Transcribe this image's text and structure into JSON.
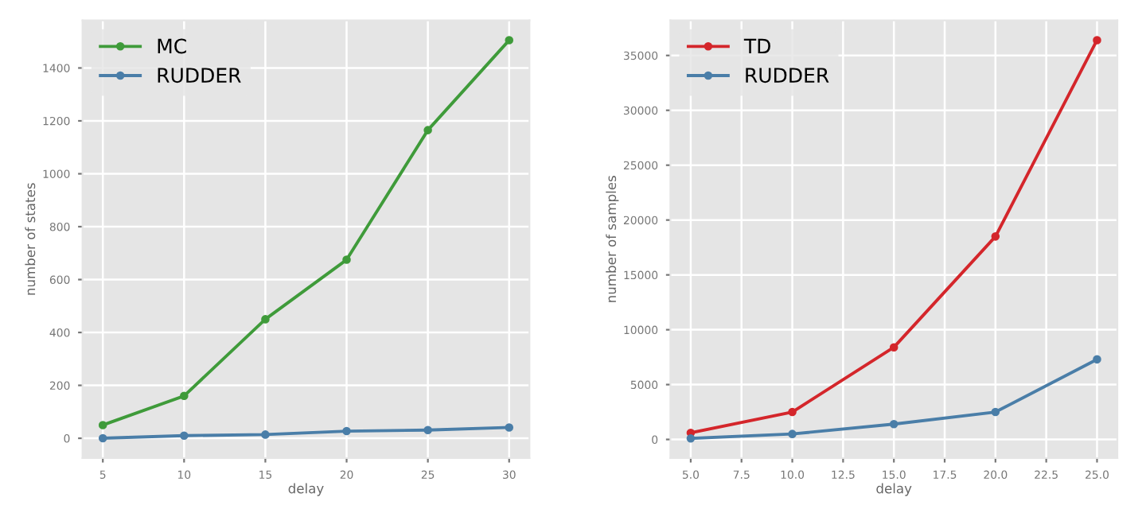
{
  "chart_data": [
    {
      "type": "line",
      "xlabel": "delay",
      "ylabel": "number of states",
      "x": [
        5,
        10,
        15,
        20,
        25,
        30
      ],
      "series": [
        {
          "name": "MC",
          "color": "#3f9b3a",
          "values": [
            50,
            160,
            450,
            675,
            1165,
            1505
          ]
        },
        {
          "name": "RUDDER",
          "color": "#4a7ea8",
          "values": [
            0,
            10,
            14,
            27,
            31,
            41
          ]
        }
      ],
      "xlim": [
        3.75,
        31.25
      ],
      "ylim": [
        -75,
        1580
      ],
      "xticks": [
        5,
        10,
        15,
        20,
        25,
        30
      ],
      "yticks": [
        0,
        200,
        400,
        600,
        800,
        1000,
        1200,
        1400
      ],
      "grid": true,
      "legend": "top left",
      "marker": "circle",
      "line_style": "solid"
    },
    {
      "type": "line",
      "xlabel": "delay",
      "ylabel": "number of samples",
      "x": [
        5,
        10,
        15,
        20,
        25
      ],
      "series": [
        {
          "name": "TD",
          "color": "#d4262b",
          "values": [
            600,
            2500,
            8400,
            18500,
            36400
          ]
        },
        {
          "name": "RUDDER",
          "color": "#4a7ea8",
          "values": [
            100,
            500,
            1400,
            2500,
            7300
          ]
        }
      ],
      "xlim": [
        4,
        26
      ],
      "ylim": [
        -1700,
        38200
      ],
      "xticks": [
        {
          "value": 5,
          "label": "5.0"
        },
        {
          "value": 7.5,
          "label": "7.5"
        },
        {
          "value": 10,
          "label": "10.0"
        },
        {
          "value": 12.5,
          "label": "12.5"
        },
        {
          "value": 15,
          "label": "15.0"
        },
        {
          "value": 17.5,
          "label": "17.5"
        },
        {
          "value": 20,
          "label": "20.0"
        },
        {
          "value": 22.5,
          "label": "22.5"
        },
        {
          "value": 25,
          "label": "25.0"
        }
      ],
      "yticks": [
        0,
        5000,
        10000,
        15000,
        20000,
        25000,
        30000,
        35000
      ],
      "grid": true,
      "legend": "top left",
      "marker": "circle",
      "line_style": "solid"
    }
  ]
}
